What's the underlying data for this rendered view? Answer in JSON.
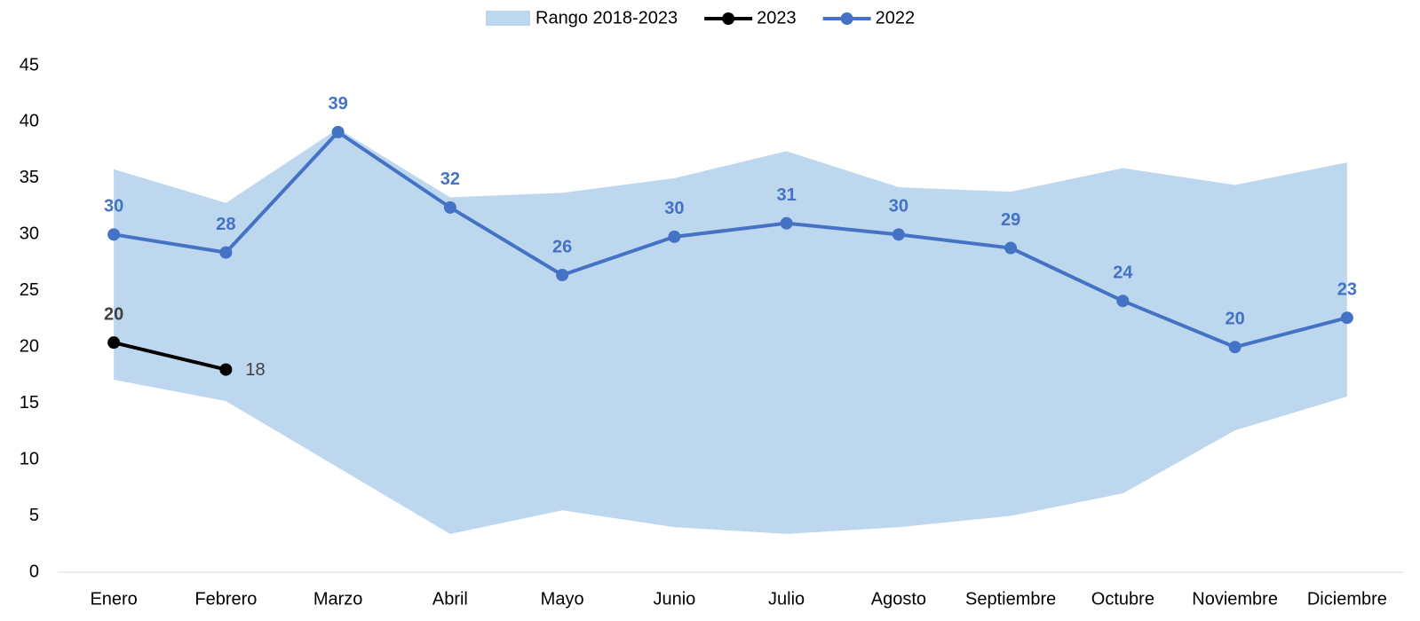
{
  "chart_data": {
    "type": "line",
    "categories": [
      "Enero",
      "Febrero",
      "Marzo",
      "Abril",
      "Mayo",
      "Junio",
      "Julio",
      "Agosto",
      "Septiembre",
      "Octubre",
      "Noviembre",
      "Diciembre"
    ],
    "series": [
      {
        "name": "Rango 2018-2023",
        "type": "band",
        "color": "#bdd7ee",
        "high": [
          35.8,
          32.8,
          39.4,
          33.3,
          33.7,
          35.0,
          37.4,
          34.2,
          33.8,
          35.9,
          34.4,
          36.4
        ],
        "low": [
          17.1,
          15.2,
          9.3,
          3.4,
          5.5,
          4.0,
          3.4,
          4.0,
          5.0,
          7.0,
          12.6,
          15.6
        ]
      },
      {
        "name": "2023",
        "color": "#000000",
        "values": [
          20.4,
          18.0,
          null,
          null,
          null,
          null,
          null,
          null,
          null,
          null,
          null,
          null
        ],
        "value_labels": [
          "20",
          "18",
          null,
          null,
          null,
          null,
          null,
          null,
          null,
          null,
          null,
          null
        ]
      },
      {
        "name": "2022",
        "color": "#4472c4",
        "values": [
          30.0,
          28.4,
          39.1,
          32.4,
          26.4,
          29.8,
          31.0,
          30.0,
          28.8,
          24.1,
          20.0,
          22.6
        ],
        "value_labels": [
          "30",
          "28",
          "39",
          "32",
          "26",
          "30",
          "31",
          "30",
          "29",
          "24",
          "20",
          "23"
        ]
      }
    ],
    "ylim": [
      0,
      45
    ],
    "yticks": [
      0,
      5,
      10,
      15,
      20,
      25,
      30,
      35,
      40,
      45
    ],
    "grid": false,
    "legend": "top"
  }
}
